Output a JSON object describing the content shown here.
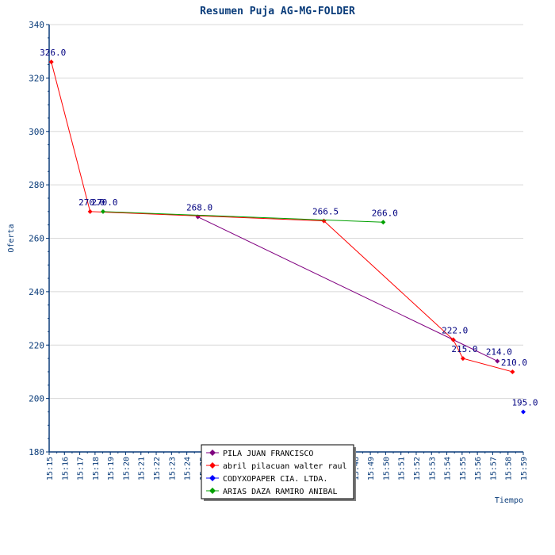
{
  "chart_data": {
    "type": "line",
    "title": "Resumen Puja AG-MG-FOLDER",
    "xlabel": "Tiempo",
    "ylabel": "Oferta",
    "ylim": [
      180,
      340
    ],
    "yticks": [
      180,
      200,
      220,
      240,
      260,
      280,
      300,
      320,
      340
    ],
    "xlim": [
      "15:15",
      "15:59"
    ],
    "xticks": [
      "15:15",
      "15:16",
      "15:17",
      "15:18",
      "15:19",
      "15:20",
      "15:21",
      "15:22",
      "15:23",
      "15:24",
      "15:25",
      "15:26",
      "15:27",
      "15:28",
      "15:29",
      "15:30",
      "15:44",
      "15:45",
      "15:46",
      "15:47",
      "15:48",
      "15:49",
      "15:50",
      "15:51",
      "15:52",
      "15:53",
      "15:54",
      "15:55",
      "15:56",
      "15:57",
      "15:58",
      "15:59"
    ],
    "grid": true,
    "legend_position": "bottom-center",
    "series": [
      {
        "name": "PILA  JUAN FRANCISCO",
        "color": "#800080",
        "points": [
          {
            "x": "15:28.8",
            "y": 268.0,
            "label": "268.0"
          },
          {
            "x": "15:52.5",
            "y": 222.0,
            "label": "222.0"
          },
          {
            "x": "15:56.6",
            "y": 214.0,
            "label": "214.0"
          }
        ]
      },
      {
        "name": "abril pilacuan walter raul",
        "color": "#ff0000",
        "points": [
          {
            "x": "15:15.2",
            "y": 326.0,
            "label": "326.0"
          },
          {
            "x": "15:18.8",
            "y": 270.0,
            "label": "270.0"
          },
          {
            "x": "15:40.5",
            "y": 266.5,
            "label": "266.5"
          },
          {
            "x": "15:52.5",
            "y": 222.0,
            "label": ""
          },
          {
            "x": "15:53.4",
            "y": 215.0,
            "label": "215.0"
          },
          {
            "x": "15:58.0",
            "y": 210.0,
            "label": "210.0"
          }
        ]
      },
      {
        "name": "CODYXOPAPER CIA. LTDA.",
        "color": "#0000ff",
        "points": [
          {
            "x": "15:59.0",
            "y": 195.0,
            "label": "195.0"
          }
        ]
      },
      {
        "name": "ARIAS DAZA RAMIRO ANIBAL",
        "color": "#00a000",
        "points": [
          {
            "x": "15:20.0",
            "y": 270.0,
            "label": "270.0"
          },
          {
            "x": "15:46.0",
            "y": 266.0,
            "label": "266.0"
          }
        ]
      }
    ]
  },
  "colors": {
    "text": "#0a3c7a",
    "grid": "#d8d8d8",
    "axis": "#0a3c7a"
  }
}
